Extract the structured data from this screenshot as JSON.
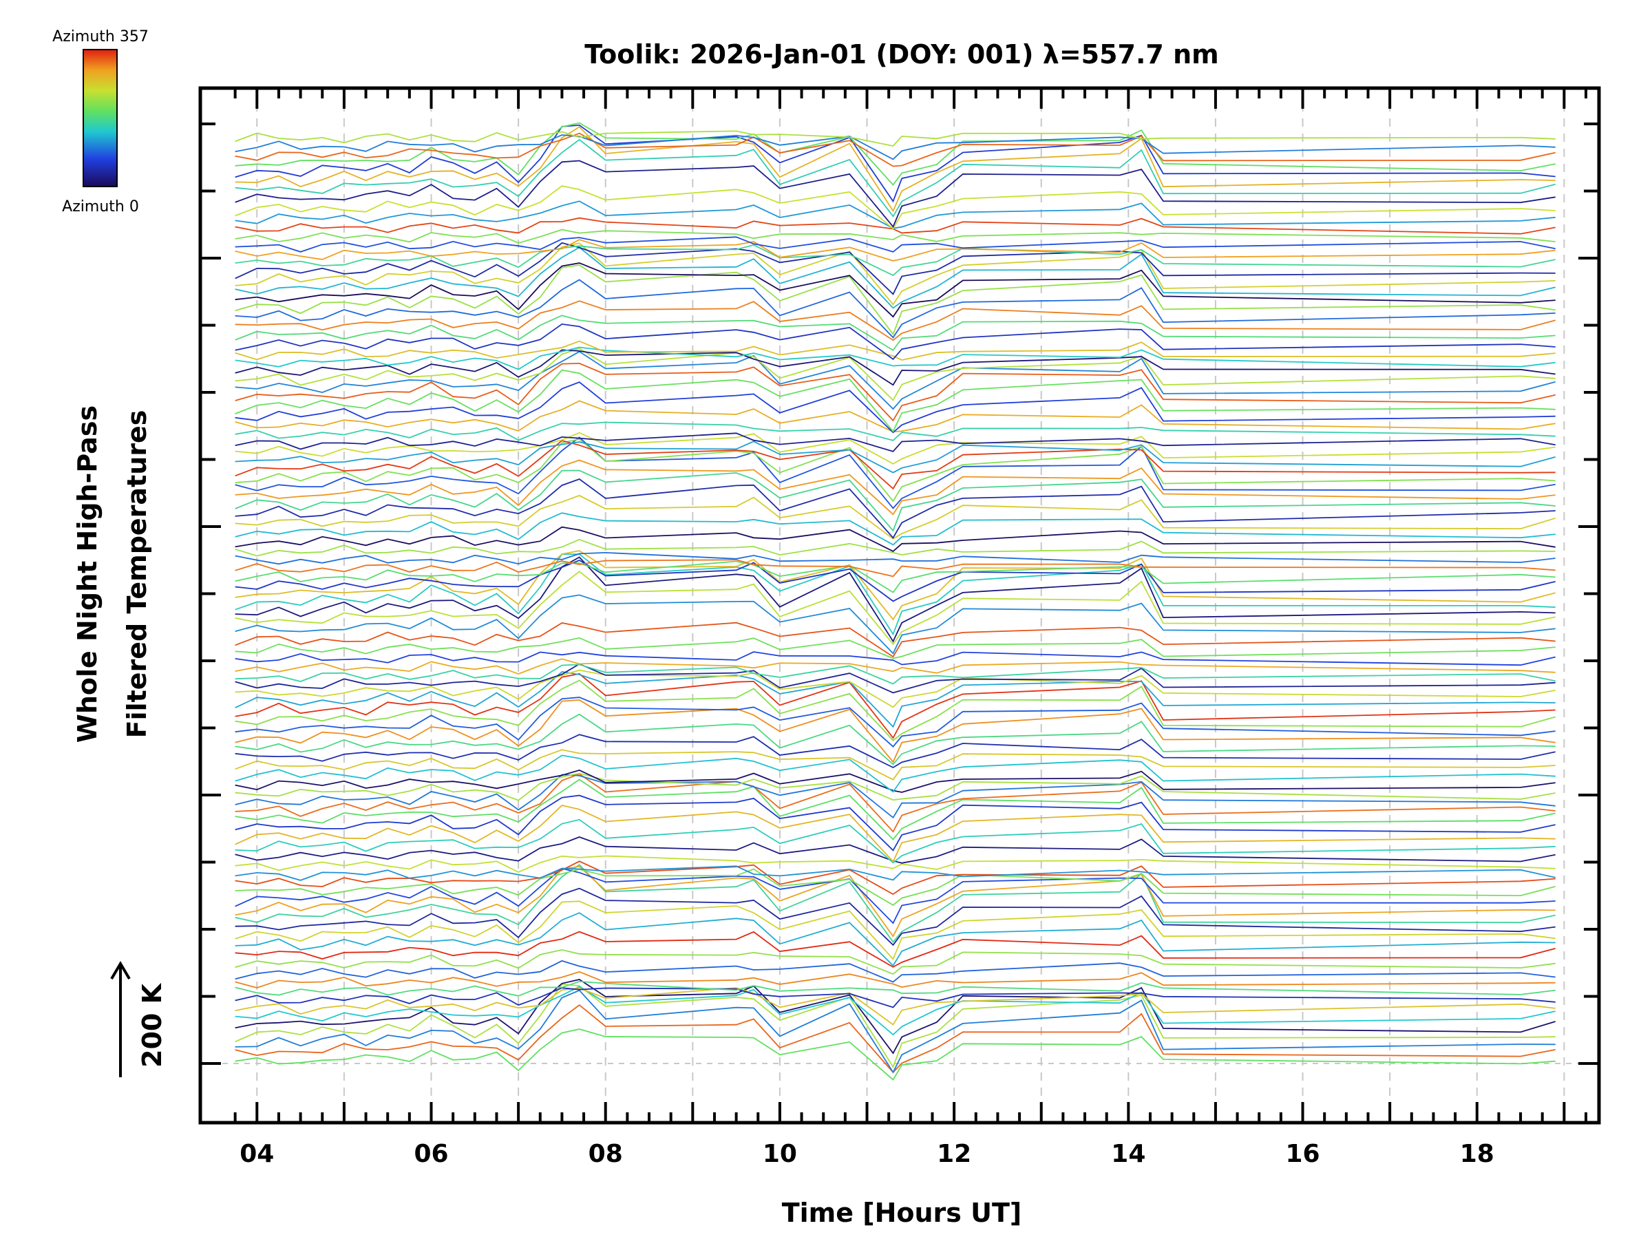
{
  "chart_data": {
    "type": "line",
    "title": "Toolik: 2026-Jan-01 (DOY: 001) λ=557.7 nm",
    "xlabel": "Time [Hours UT]",
    "ylabel_line1": "Whole Night High-Pass",
    "ylabel_line2": "Filtered Temperatures",
    "scale_label": "200 K",
    "xlim": [
      3.35,
      19.4
    ],
    "x_tick_labels": [
      "04",
      "06",
      "08",
      "10",
      "12",
      "14",
      "16",
      "18"
    ],
    "x_tick_values": [
      4,
      6,
      8,
      10,
      12,
      14,
      16,
      18
    ],
    "colorbar": {
      "max_label": "Azimuth 357",
      "min_label": "Azimuth 0",
      "colormap": "rainbow"
    },
    "series_count": 104,
    "series_spacing_K": 16,
    "x": [
      3.75,
      4.0,
      4.25,
      4.5,
      4.75,
      5.0,
      5.25,
      5.5,
      5.75,
      6.0,
      6.25,
      6.5,
      6.75,
      7.0,
      7.25,
      7.5,
      7.7,
      8.0,
      9.5,
      9.7,
      10.0,
      10.8,
      11.3,
      11.4,
      11.8,
      12.1,
      13.9,
      14.15,
      14.4,
      18.5,
      18.9
    ],
    "signature_K": [
      0,
      4,
      8,
      2,
      6,
      10,
      6,
      14,
      10,
      22,
      12,
      4,
      14,
      -6,
      26,
      60,
      68,
      40,
      50,
      52,
      15,
      48,
      -35,
      -10,
      10,
      35,
      40,
      55,
      -2,
      0,
      5
    ],
    "colors": {
      "frame": "#000000",
      "grid": "#c8c8c8",
      "background": "#ffffff"
    }
  }
}
